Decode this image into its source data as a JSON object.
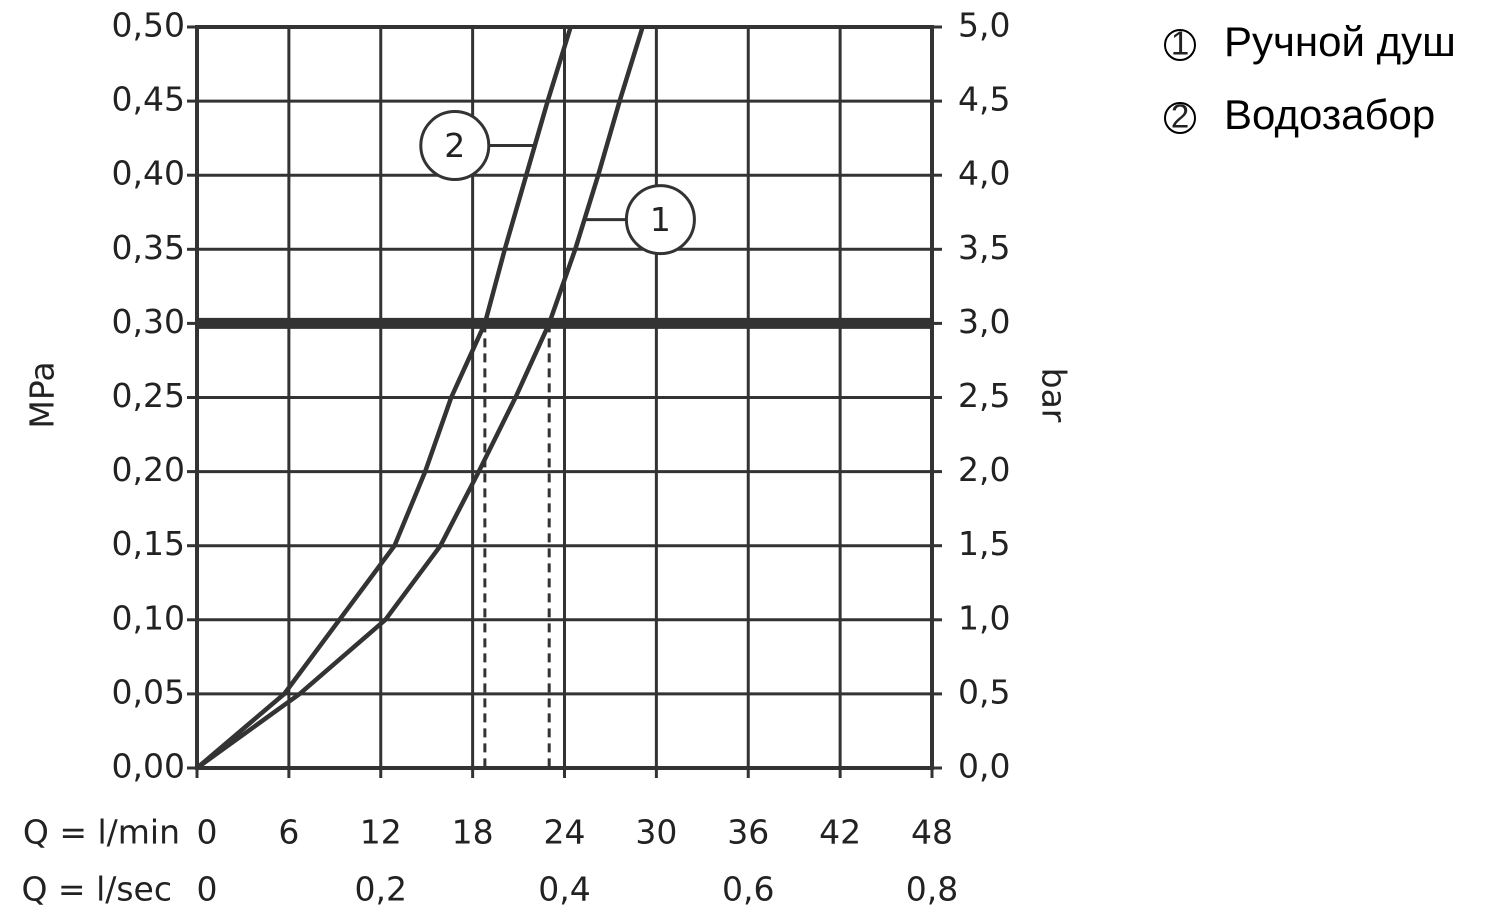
{
  "chart_data": {
    "type": "line",
    "ylabel": "MPa",
    "y2label": "bar",
    "xlabel": "Q = l/min",
    "x2label": "Q = l/sec",
    "xlim": [
      0,
      48
    ],
    "xticks": [
      0,
      6,
      12,
      18,
      24,
      30,
      36,
      42,
      48
    ],
    "x2lim": [
      0,
      0.8
    ],
    "x2ticks": [
      0,
      {
        "value": 0.2,
        "label": "0,2"
      },
      {
        "value": 0.4,
        "label": "0,4"
      },
      {
        "value": 0.6,
        "label": "0,6"
      },
      {
        "value": 0.8,
        "label": "0,8"
      }
    ],
    "ylim": [
      0,
      0.5
    ],
    "yticks": [
      {
        "value": 0,
        "label": "0,00"
      },
      {
        "value": 0.05,
        "label": "0,05"
      },
      {
        "value": 0.1,
        "label": "0,10"
      },
      {
        "value": 0.15,
        "label": "0,15"
      },
      {
        "value": 0.2,
        "label": "0,20"
      },
      {
        "value": 0.25,
        "label": "0,25"
      },
      {
        "value": 0.3,
        "label": "0,30"
      },
      {
        "value": 0.35,
        "label": "0,35"
      },
      {
        "value": 0.4,
        "label": "0,40"
      },
      {
        "value": 0.45,
        "label": "0,45"
      },
      {
        "value": 0.5,
        "label": "0,50"
      }
    ],
    "y2lim": [
      0,
      5
    ],
    "y2ticks": [
      {
        "value": 0,
        "label": "0,0"
      },
      {
        "value": 0.5,
        "label": "0,5"
      },
      {
        "value": 1,
        "label": "1,0"
      },
      {
        "value": 1.5,
        "label": "1,5"
      },
      {
        "value": 2,
        "label": "2,0"
      },
      {
        "value": 2.5,
        "label": "2,5"
      },
      {
        "value": 3,
        "label": "3,0"
      },
      {
        "value": 3.5,
        "label": "3,5"
      },
      {
        "value": 4,
        "label": "4,0"
      },
      {
        "value": 4.5,
        "label": "4,5"
      },
      {
        "value": 5,
        "label": "5,0"
      }
    ],
    "grid": true,
    "reference_y": 0.3,
    "legend": "top-right",
    "series": [
      {
        "name": "Ручной душ",
        "label": "1",
        "color": "#333333",
        "flow_at_ref": 23,
        "x": [
          0,
          6.7,
          12.3,
          15.9,
          18.4,
          20.8,
          23.0,
          24.7,
          26.2,
          27.6,
          29.1
        ],
        "values": [
          0,
          0.05,
          0.1,
          0.15,
          0.2,
          0.25,
          0.3,
          0.35,
          0.4,
          0.45,
          0.5
        ]
      },
      {
        "name": "Водозабор",
        "label": "2",
        "color": "#333333",
        "flow_at_ref": 18.8,
        "x": [
          0,
          5.7,
          9.3,
          12.9,
          14.9,
          16.6,
          18.8,
          20.1,
          21.5,
          22.9,
          24.4
        ],
        "values": [
          0,
          0.05,
          0.1,
          0.15,
          0.2,
          0.25,
          0.3,
          0.35,
          0.4,
          0.45,
          0.5
        ]
      }
    ]
  }
}
